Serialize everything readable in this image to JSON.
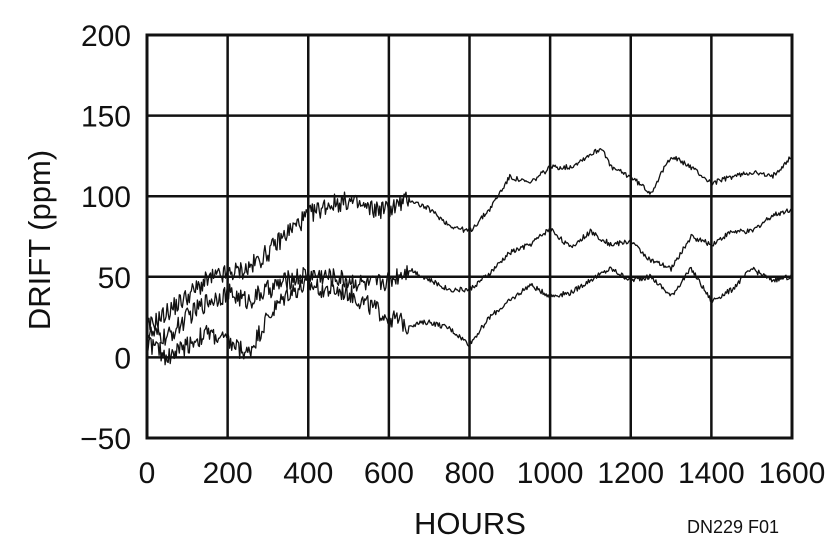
{
  "chart_data": {
    "type": "line",
    "xlabel": "HOURS",
    "ylabel": "DRIFT (ppm)",
    "xlim": [
      0,
      1600
    ],
    "ylim": [
      -50,
      200
    ],
    "x_ticks": [
      0,
      200,
      400,
      600,
      800,
      1000,
      1200,
      1400,
      1600
    ],
    "y_ticks": [
      200,
      150,
      100,
      50,
      0,
      -50
    ],
    "grid": true,
    "legend": "none",
    "annotation": "DN229 F01",
    "line_color": "#111111",
    "series": [
      {
        "x": [
          0,
          50,
          100,
          150,
          200,
          250,
          300,
          350,
          400,
          450,
          500,
          550,
          600,
          650,
          700,
          750,
          800,
          850,
          900,
          950,
          1000,
          1050,
          1100,
          1130,
          1150,
          1200,
          1250,
          1300,
          1350,
          1400,
          1450,
          1500,
          1550,
          1600
        ],
        "values": [
          18,
          28,
          38,
          48,
          52,
          55,
          65,
          78,
          88,
          95,
          97,
          92,
          92,
          98,
          92,
          82,
          78,
          92,
          112,
          108,
          118,
          118,
          126,
          130,
          118,
          112,
          102,
          125,
          118,
          108,
          112,
          115,
          112,
          125
        ]
      },
      {
        "x": [
          0,
          50,
          100,
          150,
          200,
          250,
          300,
          350,
          400,
          450,
          500,
          550,
          600,
          650,
          700,
          750,
          800,
          850,
          900,
          950,
          1000,
          1050,
          1100,
          1150,
          1200,
          1250,
          1300,
          1350,
          1400,
          1450,
          1500,
          1550,
          1600
        ],
        "values": [
          15,
          12,
          25,
          35,
          40,
          35,
          42,
          48,
          52,
          50,
          48,
          45,
          48,
          55,
          48,
          42,
          42,
          52,
          65,
          70,
          80,
          68,
          78,
          70,
          72,
          60,
          55,
          75,
          70,
          78,
          78,
          88,
          92
        ]
      },
      {
        "x": [
          0,
          50,
          100,
          150,
          200,
          250,
          300,
          350,
          400,
          450,
          500,
          550,
          600,
          650,
          700,
          750,
          800,
          850,
          900,
          950,
          1000,
          1050,
          1100,
          1150,
          1200,
          1250,
          1300,
          1350,
          1400,
          1450,
          1500,
          1550,
          1600
        ],
        "values": [
          10,
          0,
          8,
          15,
          10,
          2,
          25,
          40,
          45,
          42,
          40,
          32,
          25,
          20,
          22,
          18,
          8,
          25,
          35,
          45,
          38,
          40,
          48,
          55,
          48,
          50,
          38,
          55,
          35,
          42,
          55,
          48,
          50
        ]
      }
    ]
  }
}
